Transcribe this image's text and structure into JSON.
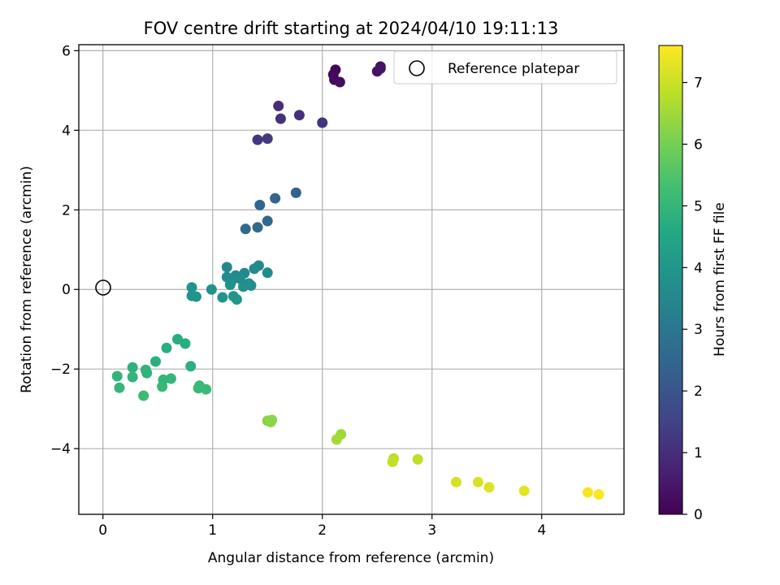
{
  "chart_data": {
    "type": "scatter",
    "title": "FOV centre drift starting at 2024/04/10 19:11:13",
    "xlabel": "Angular distance from reference (arcmin)",
    "ylabel": "Rotation from reference (arcmin)",
    "xlim": [
      -0.22,
      4.75
    ],
    "ylim": [
      -5.65,
      6.15
    ],
    "x_ticks": [
      0,
      1,
      2,
      3,
      4
    ],
    "x_tick_labels": [
      "0",
      "1",
      "2",
      "3",
      "4"
    ],
    "y_ticks": [
      -4,
      -2,
      0,
      2,
      4,
      6
    ],
    "y_tick_labels": [
      "−4",
      "−2",
      "0",
      "2",
      "4",
      "6"
    ],
    "grid": true,
    "legend": {
      "location": "top-right",
      "entries": [
        "Reference platepar"
      ]
    },
    "reference_point": {
      "x": 0,
      "y": 0
    },
    "colorbar": {
      "label": "Hours from first FF file",
      "min": 0,
      "max": 7.6,
      "ticks": [
        0,
        1,
        2,
        3,
        4,
        5,
        6,
        7
      ],
      "tick_labels": [
        "0",
        "1",
        "2",
        "3",
        "4",
        "5",
        "6",
        "7"
      ],
      "colormap": "viridis"
    },
    "points": [
      {
        "x": 2.12,
        "y": 5.52,
        "hours": 0.1
      },
      {
        "x": 2.1,
        "y": 5.4,
        "hours": 0.15
      },
      {
        "x": 2.11,
        "y": 5.27,
        "hours": 0.2
      },
      {
        "x": 2.16,
        "y": 5.21,
        "hours": 0.25
      },
      {
        "x": 2.53,
        "y": 5.6,
        "hours": 0.3
      },
      {
        "x": 2.5,
        "y": 5.48,
        "hours": 0.35
      },
      {
        "x": 2.53,
        "y": 5.55,
        "hours": 0.38
      },
      {
        "x": 1.6,
        "y": 4.61,
        "hours": 1.0
      },
      {
        "x": 1.79,
        "y": 4.38,
        "hours": 1.05
      },
      {
        "x": 1.62,
        "y": 4.29,
        "hours": 1.1
      },
      {
        "x": 2.0,
        "y": 4.19,
        "hours": 1.15
      },
      {
        "x": 1.41,
        "y": 3.76,
        "hours": 1.2
      },
      {
        "x": 1.5,
        "y": 3.79,
        "hours": 1.25
      },
      {
        "x": 1.76,
        "y": 2.43,
        "hours": 2.4
      },
      {
        "x": 1.57,
        "y": 2.29,
        "hours": 2.45
      },
      {
        "x": 1.43,
        "y": 2.12,
        "hours": 2.5
      },
      {
        "x": 1.5,
        "y": 1.72,
        "hours": 2.55
      },
      {
        "x": 1.41,
        "y": 1.56,
        "hours": 2.6
      },
      {
        "x": 1.3,
        "y": 1.52,
        "hours": 2.65
      },
      {
        "x": 1.13,
        "y": 0.56,
        "hours": 3.5
      },
      {
        "x": 1.29,
        "y": 0.41,
        "hours": 3.52
      },
      {
        "x": 1.42,
        "y": 0.6,
        "hours": 3.55
      },
      {
        "x": 1.38,
        "y": 0.52,
        "hours": 3.58
      },
      {
        "x": 1.5,
        "y": 0.42,
        "hours": 3.6
      },
      {
        "x": 1.21,
        "y": 0.35,
        "hours": 3.62
      },
      {
        "x": 1.13,
        "y": 0.31,
        "hours": 3.65
      },
      {
        "x": 1.17,
        "y": 0.2,
        "hours": 3.68
      },
      {
        "x": 1.25,
        "y": 0.27,
        "hours": 3.7
      },
      {
        "x": 1.33,
        "y": 0.15,
        "hours": 3.72
      },
      {
        "x": 1.28,
        "y": 0.07,
        "hours": 3.75
      },
      {
        "x": 1.35,
        "y": 0.1,
        "hours": 3.78
      },
      {
        "x": 1.16,
        "y": 0.12,
        "hours": 3.8
      },
      {
        "x": 0.81,
        "y": 0.05,
        "hours": 3.82
      },
      {
        "x": 0.99,
        "y": 0.0,
        "hours": 3.85
      },
      {
        "x": 0.81,
        "y": -0.16,
        "hours": 3.88
      },
      {
        "x": 0.85,
        "y": -0.18,
        "hours": 3.9
      },
      {
        "x": 1.09,
        "y": -0.2,
        "hours": 3.92
      },
      {
        "x": 1.19,
        "y": -0.17,
        "hours": 3.95
      },
      {
        "x": 1.22,
        "y": -0.25,
        "hours": 3.98
      },
      {
        "x": 0.68,
        "y": -1.25,
        "hours": 4.7
      },
      {
        "x": 0.75,
        "y": -1.36,
        "hours": 4.72
      },
      {
        "x": 0.58,
        "y": -1.47,
        "hours": 4.75
      },
      {
        "x": 0.48,
        "y": -1.81,
        "hours": 4.78
      },
      {
        "x": 0.8,
        "y": -1.93,
        "hours": 4.8
      },
      {
        "x": 0.27,
        "y": -1.96,
        "hours": 4.85
      },
      {
        "x": 0.39,
        "y": -2.02,
        "hours": 4.88
      },
      {
        "x": 0.4,
        "y": -2.1,
        "hours": 4.9
      },
      {
        "x": 0.13,
        "y": -2.18,
        "hours": 4.92
      },
      {
        "x": 0.27,
        "y": -2.2,
        "hours": 4.95
      },
      {
        "x": 0.62,
        "y": -2.24,
        "hours": 4.98
      },
      {
        "x": 0.55,
        "y": -2.27,
        "hours": 5.0
      },
      {
        "x": 0.15,
        "y": -2.47,
        "hours": 5.02
      },
      {
        "x": 0.54,
        "y": -2.44,
        "hours": 5.05
      },
      {
        "x": 0.88,
        "y": -2.42,
        "hours": 5.08
      },
      {
        "x": 0.87,
        "y": -2.48,
        "hours": 5.1
      },
      {
        "x": 0.94,
        "y": -2.51,
        "hours": 5.12
      },
      {
        "x": 0.37,
        "y": -2.67,
        "hours": 5.15
      },
      {
        "x": 1.5,
        "y": -3.3,
        "hours": 6.2
      },
      {
        "x": 1.54,
        "y": -3.28,
        "hours": 6.25
      },
      {
        "x": 1.53,
        "y": -3.33,
        "hours": 6.28
      },
      {
        "x": 2.17,
        "y": -3.64,
        "hours": 6.5
      },
      {
        "x": 2.13,
        "y": -3.77,
        "hours": 6.55
      },
      {
        "x": 2.65,
        "y": -4.25,
        "hours": 6.8
      },
      {
        "x": 2.87,
        "y": -4.27,
        "hours": 6.85
      },
      {
        "x": 2.64,
        "y": -4.33,
        "hours": 6.9
      },
      {
        "x": 3.22,
        "y": -4.84,
        "hours": 7.1
      },
      {
        "x": 3.42,
        "y": -4.84,
        "hours": 7.15
      },
      {
        "x": 3.52,
        "y": -4.97,
        "hours": 7.2
      },
      {
        "x": 3.84,
        "y": -5.06,
        "hours": 7.3
      },
      {
        "x": 4.42,
        "y": -5.1,
        "hours": 7.5
      },
      {
        "x": 4.52,
        "y": -5.15,
        "hours": 7.55
      }
    ]
  }
}
